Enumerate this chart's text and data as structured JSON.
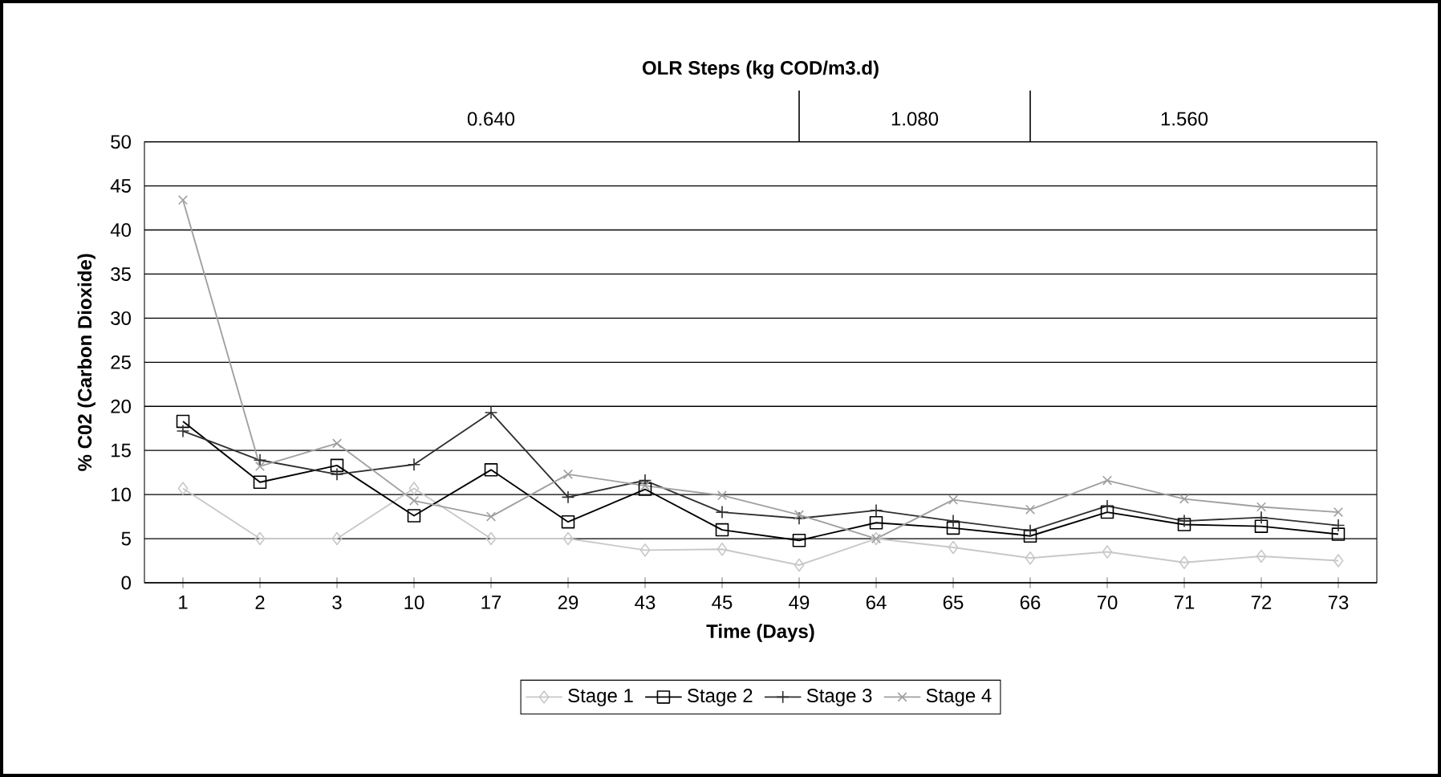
{
  "chart_data": {
    "type": "line",
    "title": "OLR Steps (kg COD/m3.d)",
    "xlabel": "Time (Days)",
    "ylabel": "% C02 (Carbon Dioxide)",
    "annotations": [
      "0.640",
      "1.080",
      "1.560"
    ],
    "categories": [
      "1",
      "2",
      "3",
      "10",
      "17",
      "29",
      "43",
      "45",
      "49",
      "64",
      "65",
      "66",
      "70",
      "71",
      "72",
      "73"
    ],
    "series": [
      {
        "name": "Stage 1",
        "color": "#c8c8c8",
        "marker": "diamond",
        "values": [
          10.7,
          5,
          5,
          10.7,
          5,
          5,
          3.7,
          3.8,
          2,
          5,
          4,
          2.8,
          3.5,
          2.3,
          3,
          2.5
        ]
      },
      {
        "name": "Stage 2",
        "color": "#000000",
        "marker": "square",
        "values": [
          18.3,
          11.4,
          13.3,
          7.6,
          12.8,
          6.9,
          10.6,
          6,
          4.8,
          6.8,
          6.2,
          5.3,
          8,
          6.6,
          6.4,
          5.5
        ]
      },
      {
        "name": "Stage 3",
        "color": "#303030",
        "marker": "plus",
        "values": [
          17.2,
          13.9,
          12.3,
          13.4,
          19.3,
          9.7,
          11.6,
          8,
          7.3,
          8.2,
          7,
          5.9,
          8.7,
          7,
          7.4,
          6.5
        ]
      },
      {
        "name": "Stage 4",
        "color": "#a0a0a0",
        "marker": "cross",
        "values": [
          43.4,
          13.2,
          15.8,
          9.3,
          7.5,
          12.3,
          11,
          9.9,
          7.7,
          5,
          9.4,
          8.3,
          11.6,
          9.5,
          8.6,
          8
        ]
      }
    ],
    "ylim": [
      0,
      50
    ],
    "yticks": [
      0,
      5,
      10,
      15,
      20,
      25,
      30,
      35,
      40,
      45,
      50
    ],
    "grid": "y",
    "legend": "bottom",
    "line_style": "solid"
  }
}
